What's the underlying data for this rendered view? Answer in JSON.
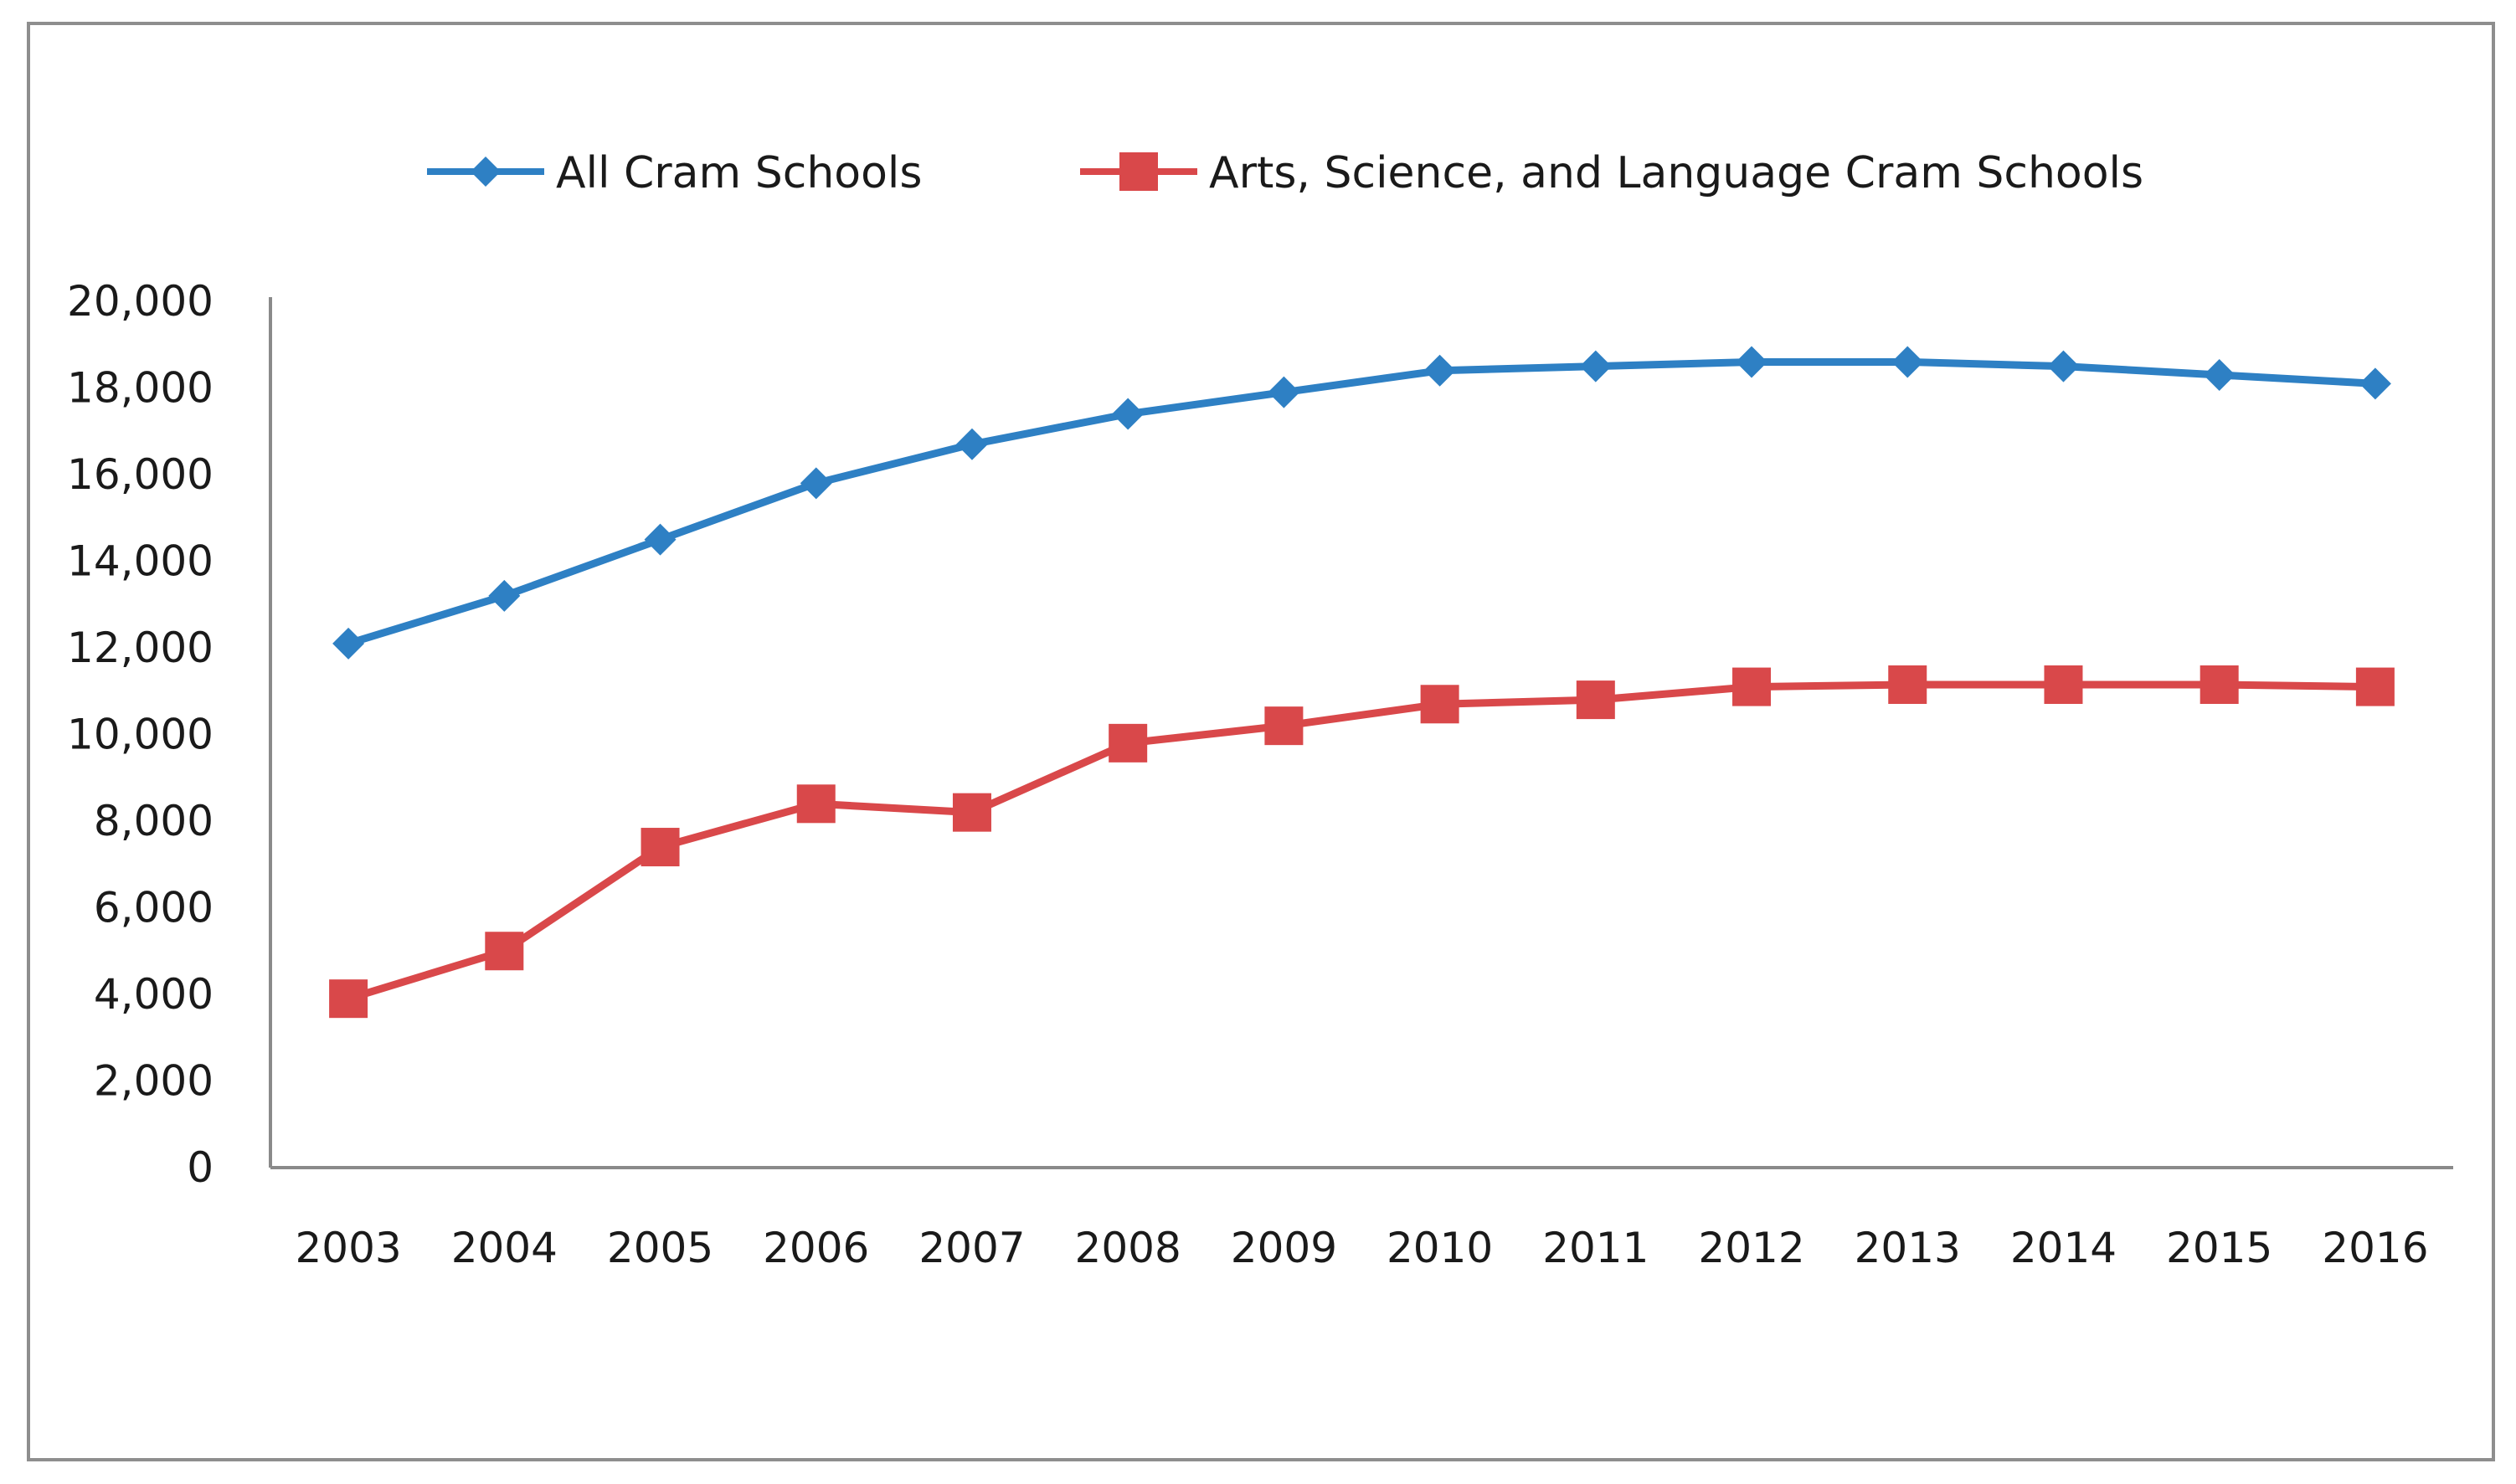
{
  "chart_data": {
    "type": "line",
    "title": "",
    "xlabel": "",
    "ylabel": "",
    "ylim": [
      0,
      20000
    ],
    "yticks": [
      "0",
      "2,000",
      "4,000",
      "6,000",
      "8,000",
      "10,000",
      "12,000",
      "14,000",
      "16,000",
      "18,000",
      "20,000"
    ],
    "categories": [
      "2003",
      "2004",
      "2005",
      "2006",
      "2007",
      "2008",
      "2009",
      "2010",
      "2011",
      "2012",
      "2013",
      "2014",
      "2015",
      "2016"
    ],
    "legend_position": "top",
    "grid": false,
    "series": [
      {
        "name": "All Cram Schools",
        "color": "#2e80c4",
        "marker": "diamond",
        "values": [
          12100,
          13200,
          14500,
          15800,
          16700,
          17400,
          17900,
          18400,
          18500,
          18600,
          18600,
          18500,
          18300,
          18100
        ]
      },
      {
        "name": "Arts, Science, and Language Cram Schools",
        "color": "#d9484a",
        "marker": "square",
        "values": [
          3900,
          5000,
          7400,
          8400,
          8200,
          9800,
          10200,
          10700,
          10800,
          11100,
          11150,
          11150,
          11150,
          11100
        ]
      }
    ]
  }
}
